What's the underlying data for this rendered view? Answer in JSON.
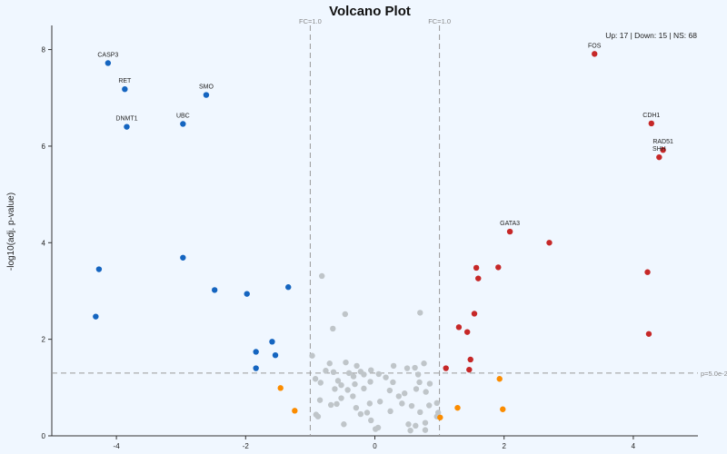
{
  "chart_data": {
    "type": "scatter",
    "title": "Volcano Plot",
    "xlabel": "",
    "ylabel": "-log10(adj. p-value)",
    "xlim": [
      -5,
      5
    ],
    "ylim": [
      0,
      8.5
    ],
    "xticks": [
      -4,
      -2,
      0,
      2,
      4
    ],
    "yticks": [
      0,
      2,
      4,
      6,
      8
    ],
    "grid": false,
    "legend": "none",
    "summary": "Up: 17 | Down: 15 | NS: 68",
    "fc_left_label": "FC=1.0",
    "fc_right_label": "FC=1.0",
    "p_label": "p=5.0e-2",
    "fc_threshold": 1.0,
    "p_threshold_y": 1.3,
    "colors": {
      "up": "#c62828",
      "down": "#1565c0",
      "ns": "#bfc5c9",
      "fc_only": "#fb8c00",
      "bg": "#f0f7ff"
    },
    "series": [
      {
        "status": "down",
        "points": [
          {
            "x": -4.13,
            "y": 7.72,
            "label": "CASP3"
          },
          {
            "x": -3.87,
            "y": 7.18,
            "label": "RET"
          },
          {
            "x": -2.61,
            "y": 7.06,
            "label": "SMO"
          },
          {
            "x": -3.84,
            "y": 6.4,
            "label": "DNMT1"
          },
          {
            "x": -2.97,
            "y": 6.46,
            "label": "UBC"
          },
          {
            "x": -4.27,
            "y": 3.45
          },
          {
            "x": -2.97,
            "y": 3.69
          },
          {
            "x": -2.48,
            "y": 3.02
          },
          {
            "x": -1.98,
            "y": 2.94
          },
          {
            "x": -1.34,
            "y": 3.08
          },
          {
            "x": -4.32,
            "y": 2.47
          },
          {
            "x": -1.59,
            "y": 1.95
          },
          {
            "x": -1.84,
            "y": 1.74
          },
          {
            "x": -1.54,
            "y": 1.67
          },
          {
            "x": -1.84,
            "y": 1.4
          }
        ]
      },
      {
        "status": "up",
        "points": [
          {
            "x": 3.4,
            "y": 7.91,
            "label": "FOS"
          },
          {
            "x": 4.28,
            "y": 6.47,
            "label": "CDH1"
          },
          {
            "x": 4.46,
            "y": 5.92,
            "label": "RAD51"
          },
          {
            "x": 4.4,
            "y": 5.77,
            "label": "SHH"
          },
          {
            "x": 2.09,
            "y": 4.23,
            "label": "GATA3"
          },
          {
            "x": 2.7,
            "y": 4.0
          },
          {
            "x": 4.22,
            "y": 3.39
          },
          {
            "x": 1.57,
            "y": 3.48
          },
          {
            "x": 1.91,
            "y": 3.49
          },
          {
            "x": 1.6,
            "y": 3.26
          },
          {
            "x": 1.54,
            "y": 2.53
          },
          {
            "x": 1.3,
            "y": 2.25
          },
          {
            "x": 1.43,
            "y": 2.15
          },
          {
            "x": 4.24,
            "y": 2.11
          },
          {
            "x": 1.48,
            "y": 1.58
          },
          {
            "x": 1.46,
            "y": 1.37
          },
          {
            "x": 1.1,
            "y": 1.4
          }
        ]
      },
      {
        "status": "ns",
        "points": [
          {
            "x": -0.82,
            "y": 3.31
          },
          {
            "x": -0.46,
            "y": 2.52
          },
          {
            "x": 0.7,
            "y": 2.55
          },
          {
            "x": -0.65,
            "y": 2.22
          },
          {
            "x": -0.97,
            "y": 1.66
          },
          {
            "x": -0.45,
            "y": 1.52
          },
          {
            "x": -0.7,
            "y": 1.5
          },
          {
            "x": -0.28,
            "y": 1.45
          },
          {
            "x": 0.29,
            "y": 1.45
          },
          {
            "x": 0.76,
            "y": 1.5
          },
          {
            "x": 0.5,
            "y": 1.4
          },
          {
            "x": 0.62,
            "y": 1.41
          },
          {
            "x": -0.76,
            "y": 1.35
          },
          {
            "x": -0.64,
            "y": 1.32
          },
          {
            "x": -0.4,
            "y": 1.3
          },
          {
            "x": -0.22,
            "y": 1.33
          },
          {
            "x": -0.06,
            "y": 1.36
          },
          {
            "x": -0.17,
            "y": 1.27
          },
          {
            "x": 0.06,
            "y": 1.28
          },
          {
            "x": -0.92,
            "y": 1.18
          },
          {
            "x": -0.84,
            "y": 1.1
          },
          {
            "x": -0.57,
            "y": 1.14
          },
          {
            "x": -0.31,
            "y": 1.07
          },
          {
            "x": -0.07,
            "y": 1.12
          },
          {
            "x": 0.28,
            "y": 1.11
          },
          {
            "x": 0.69,
            "y": 1.11
          },
          {
            "x": 0.85,
            "y": 1.08
          },
          {
            "x": -0.62,
            "y": 0.97
          },
          {
            "x": -0.42,
            "y": 0.95
          },
          {
            "x": -0.17,
            "y": 0.98
          },
          {
            "x": 0.23,
            "y": 0.94
          },
          {
            "x": 0.64,
            "y": 0.97
          },
          {
            "x": 0.79,
            "y": 0.91
          },
          {
            "x": -0.34,
            "y": 0.82
          },
          {
            "x": -0.52,
            "y": 0.78
          },
          {
            "x": -0.68,
            "y": 0.64
          },
          {
            "x": -0.59,
            "y": 0.66
          },
          {
            "x": -0.85,
            "y": 0.74
          },
          {
            "x": 0.08,
            "y": 0.71
          },
          {
            "x": -0.08,
            "y": 0.67
          },
          {
            "x": 0.42,
            "y": 0.67
          },
          {
            "x": 0.57,
            "y": 0.62
          },
          {
            "x": 0.84,
            "y": 0.63
          },
          {
            "x": 0.96,
            "y": 0.68
          },
          {
            "x": -0.29,
            "y": 0.58
          },
          {
            "x": -0.91,
            "y": 0.44
          },
          {
            "x": -0.88,
            "y": 0.4
          },
          {
            "x": -0.22,
            "y": 0.45
          },
          {
            "x": 0.24,
            "y": 0.51
          },
          {
            "x": 0.7,
            "y": 0.49
          },
          {
            "x": 0.98,
            "y": 0.48
          },
          {
            "x": -0.06,
            "y": 0.32
          },
          {
            "x": -0.48,
            "y": 0.24
          },
          {
            "x": 0.52,
            "y": 0.24
          },
          {
            "x": 0.63,
            "y": 0.21
          },
          {
            "x": 0.78,
            "y": 0.27
          },
          {
            "x": 0.05,
            "y": 0.17
          },
          {
            "x": 0.01,
            "y": 0.14
          },
          {
            "x": 0.55,
            "y": 0.11
          },
          {
            "x": 0.78,
            "y": 0.12
          },
          {
            "x": 0.96,
            "y": 0.4
          },
          {
            "x": -0.33,
            "y": 1.23
          },
          {
            "x": 0.17,
            "y": 1.21
          },
          {
            "x": -0.52,
            "y": 1.05
          },
          {
            "x": 0.37,
            "y": 0.82
          },
          {
            "x": -0.12,
            "y": 0.48
          },
          {
            "x": 0.67,
            "y": 1.27
          },
          {
            "x": 0.46,
            "y": 0.88
          }
        ]
      },
      {
        "status": "fc_only",
        "points": [
          {
            "x": -1.46,
            "y": 0.99
          },
          {
            "x": -1.24,
            "y": 0.52
          },
          {
            "x": 1.28,
            "y": 0.58
          },
          {
            "x": 1.93,
            "y": 1.18
          },
          {
            "x": 1.98,
            "y": 0.55
          },
          {
            "x": 1.01,
            "y": 0.38
          }
        ]
      }
    ]
  }
}
